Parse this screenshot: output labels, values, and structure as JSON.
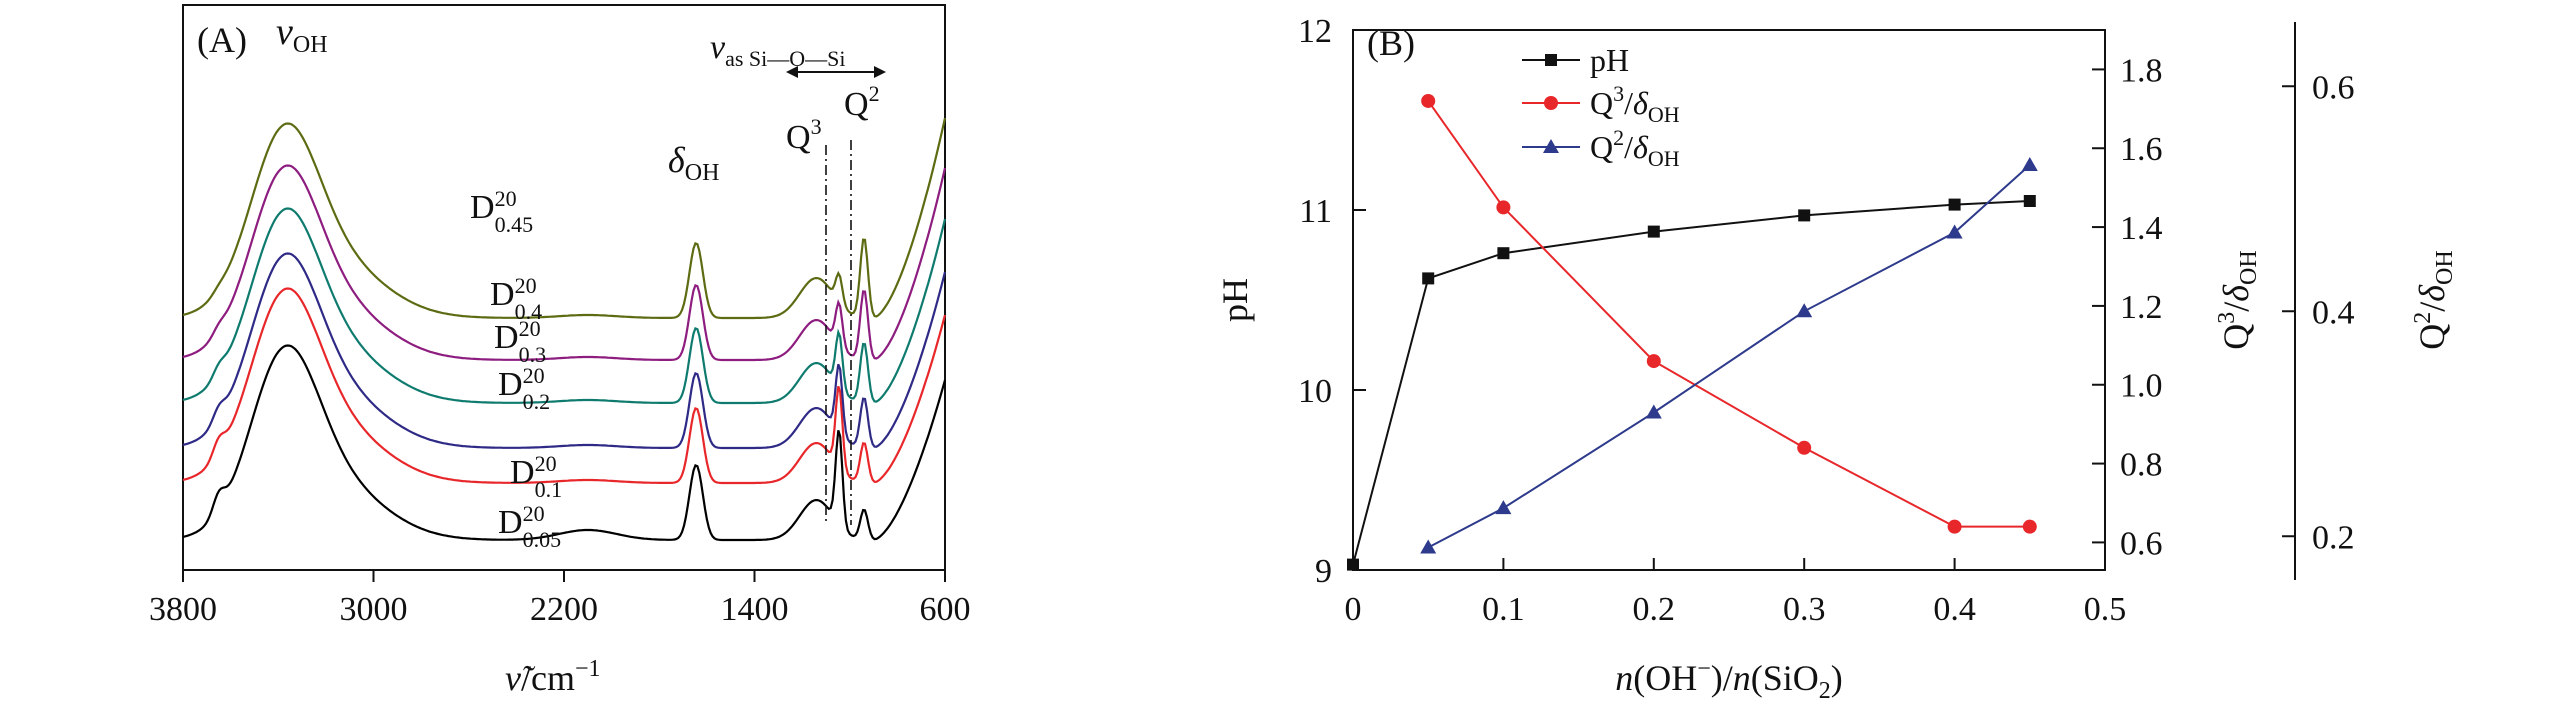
{
  "chart_data": [
    {
      "panel": "(A)",
      "type": "line",
      "xlabel": "ν̃/cm⁻¹",
      "x_ticks": [
        "3800",
        "3000",
        "2200",
        "1400",
        "600"
      ],
      "xlim": [
        3800,
        600
      ],
      "annotations": {
        "v_OH": "vOH",
        "delta_OH": "δOH",
        "v_as": "vas Si—O—Si",
        "q3": "Q3",
        "q2": "Q2"
      },
      "series": [
        {
          "name": "D20 0.05",
          "label_main": "D",
          "label_sup": "20",
          "label_sub": "0.05",
          "color": "#000000"
        },
        {
          "name": "D20 0.1",
          "label_main": "D",
          "label_sup": "20",
          "label_sub": "0.1",
          "color": "#e8272b"
        },
        {
          "name": "D20 0.2",
          "label_main": "D",
          "label_sup": "20",
          "label_sub": "0.2",
          "color": "#2e2a86"
        },
        {
          "name": "D20 0.3",
          "label_main": "D",
          "label_sup": "20",
          "label_sub": "0.3",
          "color": "#0f7b6e"
        },
        {
          "name": "D20 0.4",
          "label_main": "D",
          "label_sup": "20",
          "label_sub": "0.4",
          "color": "#8e1d80"
        },
        {
          "name": "D20 0.45",
          "label_main": "D",
          "label_sup": "20",
          "label_sub": "0.45",
          "color": "#5d6b13"
        }
      ]
    },
    {
      "panel": "(B)",
      "type": "line",
      "xlabel": "n(OH⁻)/n(SiO₂)",
      "x_ticks": [
        "0",
        "0.1",
        "0.2",
        "0.3",
        "0.4",
        "0.5"
      ],
      "xlim": [
        0,
        0.5
      ],
      "y_left": {
        "label": "pH",
        "ticks": [
          "9",
          "10",
          "11",
          "12"
        ],
        "ylim": [
          9,
          12
        ]
      },
      "y_right1": {
        "label": "Q3/δOH",
        "ticks": [
          "0.6",
          "0.8",
          "1.0",
          "1.2",
          "1.4",
          "1.6",
          "1.8"
        ],
        "ylim": [
          0.53,
          1.9
        ]
      },
      "y_right2": {
        "label": "Q2/δOH",
        "ticks": [
          "0.2",
          "0.4",
          "0.6"
        ],
        "ylim": [
          0.17,
          0.65
        ]
      },
      "series": [
        {
          "name": "pH",
          "legend": "pH",
          "color": "#111111",
          "marker": "square",
          "axis": "left",
          "x": [
            0,
            0.05,
            0.1,
            0.2,
            0.3,
            0.4,
            0.45
          ],
          "values": [
            9.03,
            10.62,
            10.76,
            10.88,
            10.97,
            11.03,
            11.05
          ]
        },
        {
          "name": "Q3/δOH",
          "legend": "Q3/δOH",
          "color": "#e8272b",
          "marker": "circle",
          "axis": "right1",
          "x": [
            0.05,
            0.1,
            0.2,
            0.3,
            0.4,
            0.45
          ],
          "values": [
            1.72,
            1.45,
            1.06,
            0.84,
            0.64,
            0.64
          ]
        },
        {
          "name": "Q2/δOH",
          "legend": "Q2/δOH",
          "color": "#2e3a8c",
          "marker": "triangle",
          "axis": "right2",
          "x": [
            0.05,
            0.1,
            0.2,
            0.3,
            0.4,
            0.45
          ],
          "values": [
            0.19,
            0.225,
            0.31,
            0.4,
            0.47,
            0.53
          ]
        }
      ]
    }
  ]
}
